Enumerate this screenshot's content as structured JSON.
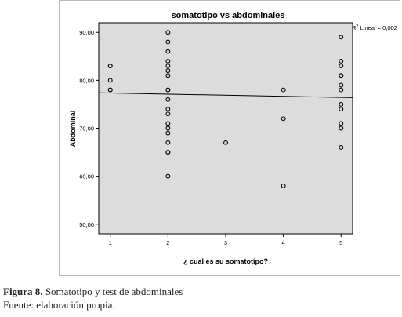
{
  "chart_data": {
    "type": "scatter",
    "title": "somatotipo vs abdominales",
    "xlabel": "¿ cual es su somatotipo?",
    "ylabel": "Abdominal",
    "xlim": [
      0.8,
      5.2
    ],
    "ylim": [
      48,
      92
    ],
    "x_ticks": [
      1,
      2,
      3,
      4,
      5
    ],
    "x_tick_labels": [
      "1",
      "2",
      "3",
      "4",
      "5"
    ],
    "y_ticks": [
      50,
      60,
      70,
      80,
      90
    ],
    "y_tick_labels": [
      "50,00",
      "60,00",
      "70,00",
      "80,00",
      "90,00"
    ],
    "grid": false,
    "plot_background": "#dcdcdc",
    "marker_color": "#000000",
    "fit_line": {
      "label": "R² Lineal = 0,002",
      "label_pieces": [
        "R",
        "2",
        " Lineal = 0,002"
      ],
      "start": [
        0.8,
        77.4
      ],
      "end": [
        5.2,
        76.4
      ]
    },
    "points": [
      [
        1,
        83
      ],
      [
        1,
        83
      ],
      [
        1,
        80
      ],
      [
        1,
        78
      ],
      [
        1,
        78
      ],
      [
        2,
        90
      ],
      [
        2,
        88
      ],
      [
        2,
        86
      ],
      [
        2,
        84
      ],
      [
        2,
        83
      ],
      [
        2,
        82
      ],
      [
        2,
        81
      ],
      [
        2,
        78
      ],
      [
        2,
        78
      ],
      [
        2,
        76
      ],
      [
        2,
        74
      ],
      [
        2,
        73
      ],
      [
        2,
        71
      ],
      [
        2,
        70
      ],
      [
        2,
        69
      ],
      [
        2,
        67
      ],
      [
        2,
        65
      ],
      [
        2,
        65
      ],
      [
        2,
        60
      ],
      [
        3,
        67
      ],
      [
        4,
        78
      ],
      [
        4,
        72
      ],
      [
        4,
        58
      ],
      [
        5,
        89
      ],
      [
        5,
        84
      ],
      [
        5,
        83
      ],
      [
        5,
        81
      ],
      [
        5,
        81
      ],
      [
        5,
        79
      ],
      [
        5,
        78
      ],
      [
        5,
        75
      ],
      [
        5,
        74
      ],
      [
        5,
        71
      ],
      [
        5,
        70
      ],
      [
        5,
        66
      ]
    ]
  },
  "caption": {
    "label": "Figura 8.",
    "text": " Somatotipo  y test de abdominales"
  },
  "source": {
    "text": "Fuente: elaboración propia."
  }
}
